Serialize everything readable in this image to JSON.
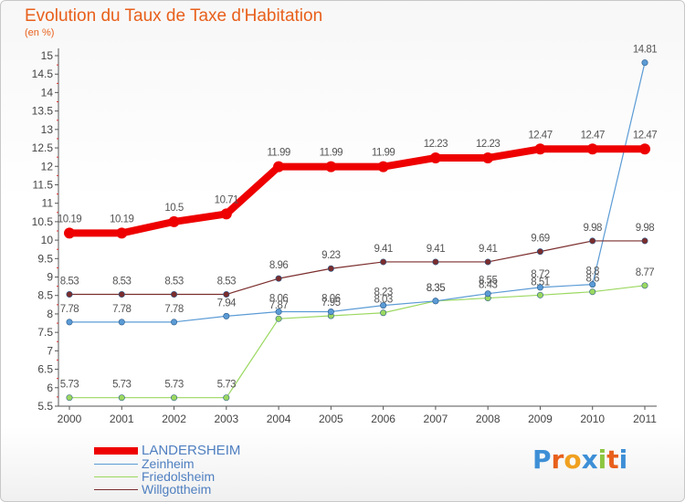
{
  "header": {
    "title": "Evolution du Taux de Taxe d'Habitation",
    "subtitle": "(en %)"
  },
  "logo": {
    "letters": [
      "P",
      "r",
      "o",
      "x",
      "i",
      "t",
      "i"
    ],
    "colors": [
      "#3d8fd6",
      "#e8601c",
      "#f0a020",
      "#3d8fd6",
      "#8cc63f",
      "#e8601c",
      "#3d8fd6"
    ]
  },
  "chart_data": {
    "type": "line",
    "title": "Evolution du Taux de Taxe d'Habitation",
    "subtitle": "(en %)",
    "xlabel": "",
    "ylabel": "",
    "categories": [
      "2000",
      "2001",
      "2002",
      "2003",
      "2004",
      "2005",
      "2006",
      "2007",
      "2008",
      "2009",
      "2010",
      "2011"
    ],
    "ylim": [
      5.5,
      15
    ],
    "yticks": [
      "5.5",
      "6",
      "6.5",
      "7",
      "7.5",
      "8",
      "8.5",
      "9",
      "9.5",
      "10",
      "10.5",
      "11",
      "11.5",
      "12",
      "12.5",
      "13",
      "13.5",
      "14",
      "14.5",
      "15"
    ],
    "grid": false,
    "legend_position": "bottom-left",
    "series": [
      {
        "name": "LANDERSHEIM",
        "color": "#ee0000",
        "values": [
          10.19,
          10.19,
          10.5,
          10.71,
          11.99,
          11.99,
          11.99,
          12.23,
          12.23,
          12.47,
          12.47,
          12.47
        ],
        "labels": [
          "10.19",
          "10.19",
          "10.5",
          "10.71",
          "11.99",
          "11.99",
          "11.99",
          "12.23",
          "12.23",
          "12.47",
          "12.47",
          "12.47"
        ]
      },
      {
        "name": "Zeinheim",
        "color": "#5b9bd5",
        "values": [
          7.78,
          7.78,
          7.78,
          7.94,
          8.06,
          8.06,
          8.23,
          8.35,
          8.55,
          8.72,
          8.8,
          14.81
        ],
        "labels": [
          "7.78",
          "7.78",
          "7.78",
          "7.94",
          "8.06",
          "8.06",
          "8.23",
          "8.35",
          "8.55",
          "8.72",
          "8.8",
          "14.81"
        ]
      },
      {
        "name": "Friedolsheim",
        "color": "#9bd860",
        "values": [
          5.73,
          5.73,
          5.73,
          5.73,
          7.87,
          7.95,
          8.03,
          8.35,
          8.43,
          8.51,
          8.6,
          8.77
        ],
        "labels": [
          "5.73",
          "5.73",
          "5.73",
          "5.73",
          "7.87",
          "7.95",
          "8.03",
          "8.35",
          "8.43",
          "8.51",
          "8.6",
          "8.77"
        ]
      },
      {
        "name": "Willgottheim",
        "color": "#7b2d2d",
        "values": [
          8.53,
          8.53,
          8.53,
          8.53,
          8.96,
          9.23,
          9.41,
          9.41,
          9.41,
          9.69,
          9.98,
          9.98
        ],
        "labels": [
          "8.53",
          "8.53",
          "8.53",
          "8.53",
          "8.96",
          "9.23",
          "9.41",
          "9.41",
          "9.41",
          "9.69",
          "9.98",
          "9.98"
        ]
      }
    ]
  }
}
